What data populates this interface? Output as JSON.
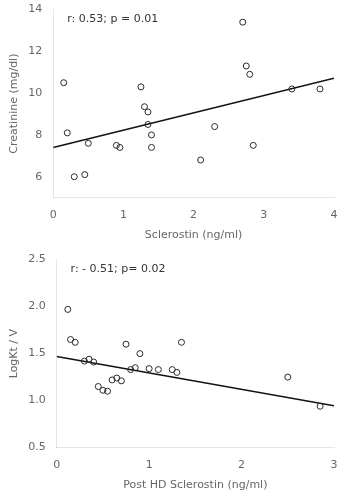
{
  "chart_data": [
    {
      "type": "scatter",
      "annotation": "r: 0.53; p = 0.01",
      "xlabel": "Sclerostin (ng/ml)",
      "ylabel": "Creatinine (mg/dl)",
      "xlim": [
        0,
        4
      ],
      "ylim": [
        5,
        14
      ],
      "xticks": [
        0,
        1,
        2,
        3,
        4
      ],
      "yticks": [
        6,
        8,
        10,
        12,
        14
      ],
      "grid": false,
      "series": [
        {
          "type": "scatter",
          "marker": "circle",
          "color": "#2a2a2a",
          "x": [
            0.15,
            0.2,
            0.3,
            0.45,
            0.5,
            0.9,
            0.95,
            1.25,
            1.3,
            1.35,
            1.35,
            1.4,
            1.4,
            2.1,
            2.3,
            2.7,
            2.75,
            2.8,
            2.85,
            3.4,
            3.8
          ],
          "values": [
            10.5,
            8.1,
            6.0,
            6.1,
            7.6,
            7.5,
            7.4,
            10.3,
            9.35,
            9.1,
            8.5,
            8.0,
            7.4,
            6.8,
            8.4,
            13.4,
            11.3,
            10.9,
            7.5,
            10.2,
            10.2
          ]
        },
        {
          "type": "line",
          "line_style": "solid",
          "color": "#111111",
          "x": [
            0,
            4
          ],
          "values": [
            7.4,
            10.72
          ]
        }
      ]
    },
    {
      "type": "scatter",
      "annotation": "r: - 0.51; p= 0.02",
      "xlabel": "Post HD Sclerostin (ng/ml)",
      "ylabel": "LogKt / V",
      "xlim": [
        0,
        3
      ],
      "ylim": [
        0.5,
        2.5
      ],
      "xticks": [
        0,
        1,
        2,
        3
      ],
      "yticks": [
        0.5,
        {
          "value": 1,
          "label": "1.0"
        },
        1.5,
        {
          "value": 2,
          "label": "2.0"
        },
        2.5
      ],
      "grid": false,
      "series": [
        {
          "type": "scatter",
          "marker": "circle",
          "color": "#2a2a2a",
          "x": [
            0.12,
            0.15,
            0.2,
            0.3,
            0.35,
            0.4,
            0.45,
            0.5,
            0.55,
            0.6,
            0.65,
            0.7,
            0.75,
            0.8,
            0.85,
            0.9,
            1.0,
            1.1,
            1.25,
            1.3,
            1.35,
            2.5,
            2.85
          ],
          "values": [
            1.97,
            1.65,
            1.62,
            1.42,
            1.44,
            1.41,
            1.15,
            1.11,
            1.1,
            1.22,
            1.24,
            1.21,
            1.6,
            1.33,
            1.35,
            1.5,
            1.34,
            1.33,
            1.33,
            1.3,
            1.62,
            1.25,
            0.94
          ]
        },
        {
          "type": "line",
          "line_style": "solid",
          "color": "#111111",
          "x": [
            0,
            3
          ],
          "values": [
            1.47,
            0.945
          ]
        }
      ]
    }
  ]
}
